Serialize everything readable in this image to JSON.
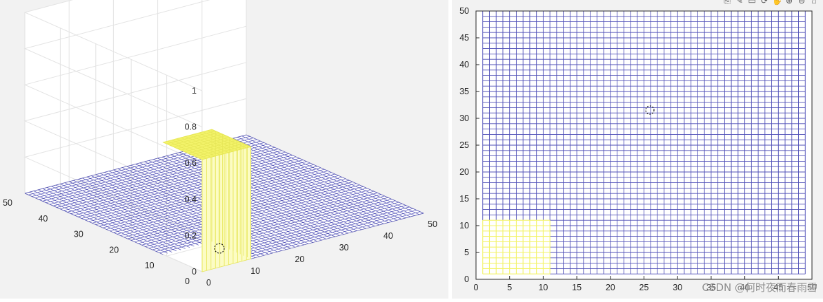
{
  "colors": {
    "background": "#f2f2f2",
    "axes_background": "#ffffff",
    "grid": "#e3e3e3",
    "low_mesh": "#3d3db0",
    "high_mesh": "#f3f36a",
    "high_edge": "#e7e759",
    "watermark": "#8a8a8a"
  },
  "toolbar": {
    "icons": [
      "export-icon",
      "brush-icon",
      "data-tip-icon",
      "rotate-icon",
      "pan-icon",
      "zoom-in-icon",
      "zoom-out-icon",
      "home-icon"
    ]
  },
  "watermark": "CSDN @何时夜而春雨雪",
  "chart_data": [
    {
      "type": "surface",
      "view": "3d",
      "x": {
        "min": 0,
        "max": 50,
        "step": 1
      },
      "y": {
        "min": 0,
        "max": 50,
        "step": 1
      },
      "zlim": [
        0,
        1
      ],
      "ztick_labels": [
        "0",
        "0.2",
        "0.4",
        "0.6",
        "0.8",
        "1"
      ],
      "xtick_labels": [
        "0",
        "10",
        "20",
        "30",
        "40",
        "50"
      ],
      "ytick_labels": [
        "0",
        "10",
        "20",
        "30",
        "40",
        "50"
      ],
      "raised_region": {
        "x_from": 0,
        "x_to": 11,
        "y_from": 0,
        "y_to": 11,
        "z": 0.62
      },
      "base_z": 0,
      "grid": true
    },
    {
      "type": "mesh",
      "view": "top",
      "x": {
        "min": 0,
        "max": 50,
        "step": 1
      },
      "y": {
        "min": 0,
        "max": 50,
        "step": 1
      },
      "xlim": [
        0,
        50
      ],
      "ylim": [
        0,
        50
      ],
      "xtick_labels": [
        "0",
        "5",
        "10",
        "15",
        "20",
        "25",
        "30",
        "35",
        "40",
        "45",
        "50"
      ],
      "ytick_labels": [
        "0",
        "5",
        "10",
        "15",
        "20",
        "25",
        "30",
        "35",
        "40",
        "45",
        "50"
      ],
      "raised_region": {
        "x_from": 0,
        "x_to": 11,
        "y_from": 0,
        "y_to": 11
      },
      "grid": false
    }
  ]
}
